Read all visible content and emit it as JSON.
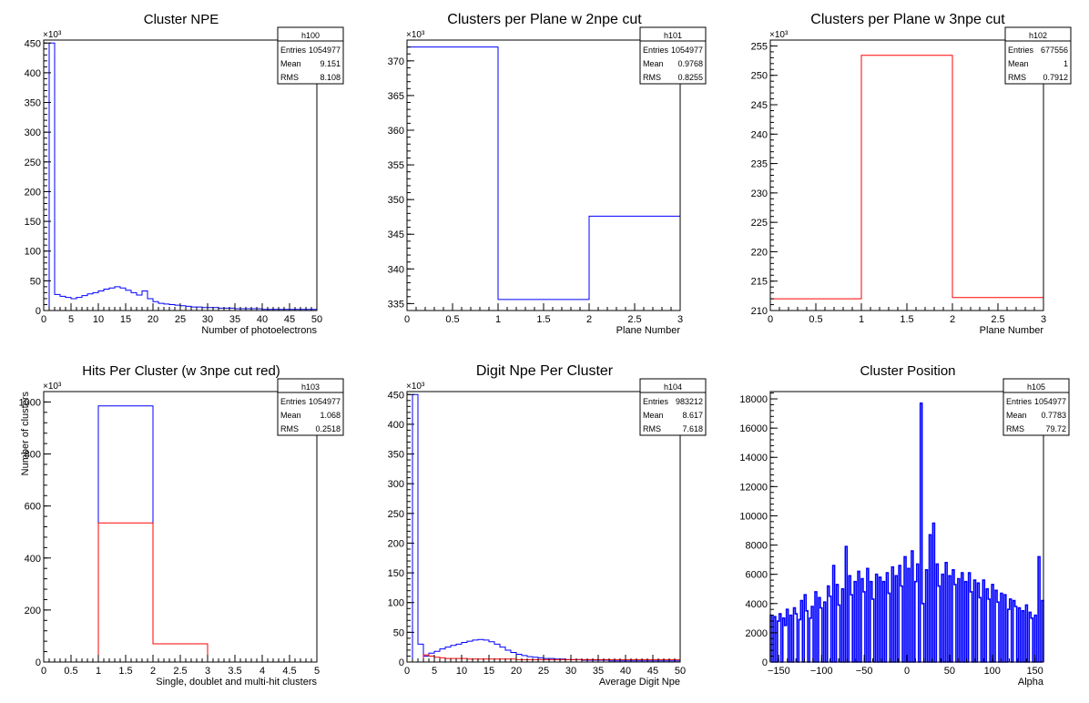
{
  "chart_data": [
    {
      "id": "h100",
      "type": "histogram",
      "title": "Cluster NPE",
      "xlabel": "Number of photoelectrons",
      "ylabel": "",
      "exponent_label": "×10³",
      "xlim": [
        0,
        50
      ],
      "ylim": [
        0,
        455
      ],
      "xticks": [
        "0",
        "5",
        "10",
        "15",
        "20",
        "25",
        "30",
        "35",
        "40",
        "45",
        "50"
      ],
      "yticks": [
        "0",
        "50",
        "100",
        "150",
        "200",
        "250",
        "300",
        "350",
        "400",
        "450"
      ],
      "stats": {
        "name": "h100",
        "entries_label": "Entries",
        "entries": "1054977",
        "mean_label": "Mean",
        "mean": "9.151",
        "rms_label": "RMS",
        "rms": "8.108"
      },
      "series": [
        {
          "color": "#0000ff",
          "edges": [
            0,
            1,
            2,
            3,
            4,
            5,
            6,
            7,
            8,
            9,
            10,
            11,
            12,
            13,
            14,
            15,
            16,
            17,
            18,
            19,
            20,
            21,
            22,
            23,
            24,
            25,
            26,
            27,
            28,
            29,
            30,
            31,
            32,
            33,
            34,
            35,
            36,
            37,
            38,
            39,
            40,
            41,
            42,
            43,
            44,
            45,
            46,
            47,
            48,
            49,
            50
          ],
          "values": [
            0,
            450,
            27,
            24,
            22,
            20,
            22,
            25,
            28,
            30,
            33,
            36,
            38,
            40,
            38,
            34,
            30,
            26,
            33,
            20,
            15,
            12,
            11,
            10,
            9,
            8,
            7,
            6,
            6,
            5,
            5,
            5,
            4,
            4,
            4,
            3,
            3,
            3,
            3,
            3,
            2,
            2,
            2,
            2,
            2,
            2,
            2,
            2,
            2,
            2
          ]
        }
      ]
    },
    {
      "id": "h101",
      "type": "histogram",
      "title": "Clusters per Plane w 2npe cut",
      "xlabel": "Plane Number",
      "ylabel": "",
      "exponent_label": "×10³",
      "xlim": [
        0,
        3
      ],
      "ylim": [
        334,
        373
      ],
      "xticks": [
        "0",
        "0.5",
        "1",
        "1.5",
        "2",
        "2.5",
        "3"
      ],
      "yticks": [
        "335",
        "340",
        "345",
        "350",
        "355",
        "360",
        "365",
        "370"
      ],
      "stats": {
        "name": "h101",
        "entries_label": "Entries",
        "entries": "1054977",
        "mean_label": "Mean",
        "mean": "0.9768",
        "rms_label": "RMS",
        "rms": "0.8255"
      },
      "series": [
        {
          "color": "#0000ff",
          "edges": [
            0,
            1,
            2,
            3
          ],
          "values": [
            372,
            335.6,
            347.6
          ]
        }
      ]
    },
    {
      "id": "h102",
      "type": "histogram",
      "title": "Clusters per Plane w 3npe cut",
      "xlabel": "Plane Number",
      "ylabel": "",
      "exponent_label": "×10³",
      "xlim": [
        0,
        3
      ],
      "ylim": [
        210,
        256
      ],
      "xticks": [
        "0",
        "0.5",
        "1",
        "1.5",
        "2",
        "2.5",
        "3"
      ],
      "yticks": [
        "210",
        "215",
        "220",
        "225",
        "230",
        "235",
        "240",
        "245",
        "250",
        "255"
      ],
      "stats": {
        "name": "h102",
        "entries_label": "Entries",
        "entries": "677556",
        "mean_label": "Mean",
        "mean": "1",
        "rms_label": "RMS",
        "rms": "0.7912"
      },
      "series": [
        {
          "color": "#ff0000",
          "edges": [
            0,
            1,
            2,
            3
          ],
          "values": [
            212,
            253.4,
            212.2
          ]
        }
      ]
    },
    {
      "id": "h103",
      "type": "histogram",
      "title": "Hits Per Cluster (w 3npe cut red)",
      "xlabel": "Single, doublet and multi-hit clusters",
      "ylabel": "Number of clusters",
      "exponent_label": "×10³",
      "xlim": [
        0,
        5
      ],
      "ylim": [
        0,
        1040
      ],
      "xticks": [
        "0",
        "0.5",
        "1",
        "1.5",
        "2",
        "2.5",
        "3",
        "3.5",
        "4",
        "4.5",
        "5"
      ],
      "yticks": [
        "0",
        "200",
        "400",
        "600",
        "800",
        "1000"
      ],
      "stats": {
        "name": "h103",
        "entries_label": "Entries",
        "entries": "1054977",
        "mean_label": "Mean",
        "mean": "1.068",
        "rms_label": "RMS",
        "rms": "0.2518"
      },
      "series": [
        {
          "color": "#0000ff",
          "edges": [
            0,
            1,
            2,
            3,
            4,
            5
          ],
          "values": [
            0,
            985,
            70,
            0,
            0
          ]
        },
        {
          "color": "#ff0000",
          "edges": [
            0,
            1,
            2,
            3,
            4,
            5
          ],
          "values": [
            0,
            535,
            70,
            0,
            0
          ]
        }
      ]
    },
    {
      "id": "h104",
      "type": "histogram",
      "title": "Digit Npe Per Cluster",
      "xlabel": "Average Digit Npe",
      "ylabel": "",
      "exponent_label": "×10³",
      "xlim": [
        0,
        50
      ],
      "ylim": [
        0,
        455
      ],
      "xticks": [
        "0",
        "5",
        "10",
        "15",
        "20",
        "25",
        "30",
        "35",
        "40",
        "45",
        "50"
      ],
      "yticks": [
        "0",
        "50",
        "100",
        "150",
        "200",
        "250",
        "300",
        "350",
        "400",
        "450"
      ],
      "stats": {
        "name": "h104",
        "entries_label": "Entries",
        "entries": "983212",
        "mean_label": "Mean",
        "mean": "8.617",
        "rms_label": "RMS",
        "rms": "7.618"
      },
      "series": [
        {
          "color": "#0000ff",
          "edges": [
            0,
            1,
            2,
            3,
            4,
            5,
            6,
            7,
            8,
            9,
            10,
            11,
            12,
            13,
            14,
            15,
            16,
            17,
            18,
            19,
            20,
            21,
            22,
            23,
            24,
            25,
            26,
            27,
            28,
            29,
            30,
            31,
            32,
            33,
            34,
            35,
            36,
            37,
            38,
            39,
            40,
            41,
            42,
            43,
            44,
            45,
            46,
            47,
            48,
            49,
            50
          ],
          "values": [
            0,
            450,
            30,
            10,
            15,
            18,
            22,
            25,
            28,
            30,
            33,
            35,
            37,
            38,
            37,
            34,
            30,
            25,
            20,
            16,
            13,
            11,
            9,
            8,
            7,
            6,
            6,
            5,
            5,
            4,
            4,
            4,
            3,
            3,
            3,
            3,
            3,
            2,
            2,
            2,
            2,
            2,
            2,
            2,
            2,
            2,
            2,
            2,
            2,
            2
          ]
        },
        {
          "color": "#ff0000",
          "edges": [
            0,
            1,
            2,
            3,
            4,
            5,
            6,
            7,
            8,
            9,
            10,
            11,
            12,
            13,
            14,
            15,
            16,
            17,
            18,
            19,
            20,
            21,
            22,
            23,
            24,
            25,
            26,
            27,
            28,
            29,
            30,
            31,
            32,
            33,
            34,
            35,
            36,
            37,
            38,
            39,
            40,
            41,
            42,
            43,
            44,
            45,
            46,
            47,
            48,
            49,
            50
          ],
          "values": [
            0,
            0,
            0,
            12,
            10,
            8,
            7,
            6,
            6,
            6,
            6,
            5,
            5,
            5,
            5,
            5,
            5,
            5,
            5,
            5,
            4,
            4,
            4,
            4,
            4,
            4,
            4,
            4,
            4,
            4,
            4,
            4,
            4,
            4,
            4,
            4,
            4,
            4,
            4,
            4,
            4,
            4,
            4,
            4,
            4,
            4,
            4,
            4,
            4,
            4
          ]
        }
      ]
    },
    {
      "id": "h105",
      "type": "histogram",
      "title": "Cluster Position",
      "xlabel": "Alpha",
      "ylabel": "",
      "exponent_label": "",
      "xlim": [
        -160,
        160
      ],
      "ylim": [
        0,
        18500
      ],
      "xticks": [
        "−150",
        "−100",
        "−50",
        "0",
        "50",
        "100",
        "150"
      ],
      "xtick_values": [
        -150,
        -100,
        -50,
        0,
        50,
        100,
        150
      ],
      "yticks": [
        "0",
        "2000",
        "4000",
        "6000",
        "8000",
        "10000",
        "12000",
        "14000",
        "16000",
        "18000"
      ],
      "stats": {
        "name": "h105",
        "entries_label": "Entries",
        "entries": "1054977",
        "mean_label": "Mean",
        "mean": "0.7783",
        "rms_label": "RMS",
        "rms": "79.72"
      },
      "series": [
        {
          "color": "#0000ff",
          "edges": "uniform",
          "values": [
            3200,
            0,
            3100,
            0,
            2800,
            3300,
            0,
            3000,
            2500,
            3600,
            0,
            3200,
            0,
            3700,
            3300,
            0,
            2900,
            4200,
            0,
            4600,
            3500,
            0,
            3000,
            3800,
            0,
            4800,
            0,
            4400,
            3700,
            0,
            4100,
            0,
            5200,
            4500,
            0,
            6600,
            0,
            5300,
            3900,
            0,
            5000,
            0,
            7900,
            0,
            5900,
            4600,
            0,
            5500,
            0,
            6200,
            0,
            5700,
            4800,
            0,
            6400,
            0,
            5500,
            4300,
            0,
            6000,
            0,
            5800,
            0,
            5500,
            0,
            6100,
            4700,
            0,
            6500,
            0,
            5900,
            0,
            6600,
            5200,
            0,
            7200,
            0,
            6400,
            0,
            7600,
            0,
            5500,
            6700,
            0,
            17700,
            4000,
            0,
            6300,
            0,
            8700,
            0,
            9500,
            0,
            6700,
            5200,
            0,
            6000,
            0,
            6800,
            0,
            5900,
            0,
            6300,
            5300,
            0,
            5700,
            0,
            6100,
            0,
            5500,
            0,
            6100,
            4800,
            0,
            5600,
            0,
            5400,
            4400,
            0,
            5600,
            0,
            5000,
            4300,
            0,
            5300,
            0,
            4900,
            4100,
            0,
            4700,
            0,
            4600,
            0,
            3600,
            4300,
            0,
            4200,
            3800,
            0,
            3700,
            0,
            3500,
            0,
            3900,
            0,
            3400,
            3000,
            0,
            3200,
            0,
            7200,
            0,
            4200
          ]
        }
      ]
    }
  ]
}
